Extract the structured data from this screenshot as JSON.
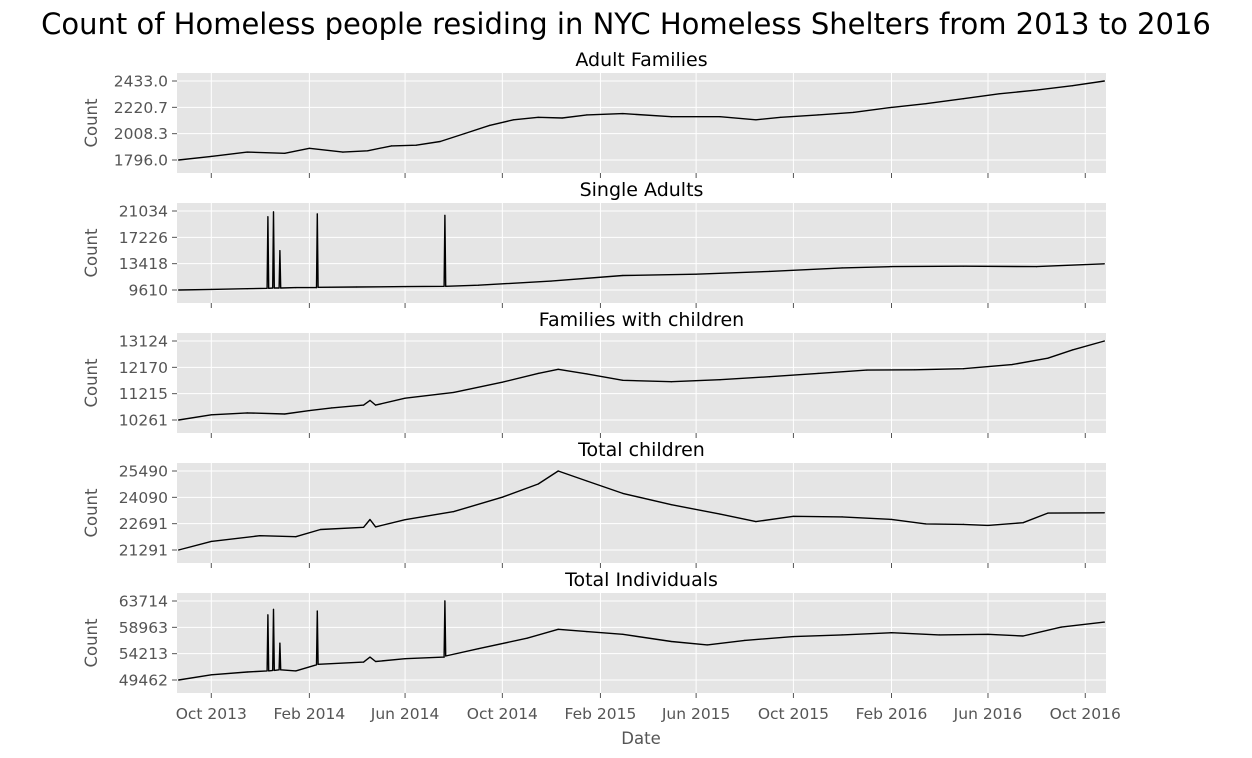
{
  "title": "Count of Homeless people residing in NYC Homeless Shelters from 2013 to 2016",
  "xlabel": "Date",
  "x_tick_labels": [
    "Oct 2013",
    "Feb 2014",
    "Jun 2014",
    "Oct 2014",
    "Feb 2015",
    "Jun 2015",
    "Oct 2015",
    "Feb 2016",
    "Jun 2016",
    "Oct 2016"
  ],
  "colors": {
    "line": "#000000",
    "panel_background": "#e5e5e5",
    "grid": "#ffffff"
  },
  "chart_data": [
    {
      "type": "line",
      "title": "Adult Families",
      "ylabel": "Count",
      "grid": true,
      "ylim": [
        1796.0,
        2433.0
      ],
      "y_tick_labels": [
        "1796.0",
        "2008.3",
        "2220.7",
        "2433.0"
      ],
      "x": [
        "2013-08-21",
        "2013-10-01",
        "2013-11-15",
        "2014-01-01",
        "2014-02-01",
        "2014-03-15",
        "2014-04-15",
        "2014-05-15",
        "2014-06-15",
        "2014-07-15",
        "2014-08-15",
        "2014-09-15",
        "2014-10-15",
        "2014-11-15",
        "2014-12-15",
        "2015-01-15",
        "2015-03-01",
        "2015-05-01",
        "2015-07-01",
        "2015-08-15",
        "2015-09-15",
        "2015-11-01",
        "2015-12-15",
        "2016-02-01",
        "2016-03-15",
        "2016-05-01",
        "2016-06-15",
        "2016-08-01",
        "2016-09-15",
        "2016-10-25"
      ],
      "values": [
        1796,
        1825,
        1860,
        1850,
        1890,
        1860,
        1870,
        1910,
        1915,
        1945,
        2010,
        2075,
        2120,
        2140,
        2135,
        2160,
        2170,
        2145,
        2145,
        2120,
        2140,
        2160,
        2180,
        2220,
        2250,
        2290,
        2330,
        2360,
        2395,
        2433
      ]
    },
    {
      "type": "line",
      "title": "Single Adults",
      "ylabel": "Count",
      "grid": true,
      "ylim": [
        9610,
        21034
      ],
      "y_tick_labels": [
        "9610",
        "13418",
        "17226",
        "21034"
      ],
      "x": [
        "2013-08-21",
        "2013-10-01",
        "2013-11-15",
        "2013-12-10",
        "2013-12-11",
        "2013-12-12",
        "2013-12-17",
        "2013-12-18",
        "2013-12-19",
        "2013-12-25",
        "2013-12-26",
        "2013-12-27",
        "2014-01-15",
        "2014-02-10",
        "2014-02-11",
        "2014-02-12",
        "2014-04-01",
        "2014-06-01",
        "2014-07-20",
        "2014-07-21",
        "2014-07-22",
        "2014-09-01",
        "2014-12-01",
        "2015-03-01",
        "2015-06-01",
        "2015-09-01",
        "2015-12-01",
        "2016-02-01",
        "2016-05-01",
        "2016-08-01",
        "2016-10-25"
      ],
      "values": [
        9610,
        9700,
        9800,
        9850,
        20200,
        9850,
        9900,
        20900,
        9900,
        9900,
        15300,
        9900,
        9950,
        9950,
        20600,
        10000,
        10050,
        10100,
        10150,
        20400,
        10150,
        10300,
        10900,
        11700,
        11900,
        12300,
        12800,
        13000,
        13050,
        13000,
        13400
      ]
    },
    {
      "type": "line",
      "title": "Families with children",
      "ylabel": "Count",
      "grid": true,
      "ylim": [
        10261,
        13124
      ],
      "y_tick_labels": [
        "10261",
        "11215",
        "12170",
        "13124"
      ],
      "x": [
        "2013-08-21",
        "2013-10-01",
        "2013-11-15",
        "2014-01-01",
        "2014-02-01",
        "2014-03-01",
        "2014-04-10",
        "2014-04-18",
        "2014-04-25",
        "2014-06-01",
        "2014-08-01",
        "2014-10-01",
        "2014-11-15",
        "2014-12-10",
        "2015-01-15",
        "2015-03-01",
        "2015-05-01",
        "2015-07-01",
        "2015-09-01",
        "2015-11-01",
        "2016-01-01",
        "2016-03-01",
        "2016-05-01",
        "2016-07-01",
        "2016-08-15",
        "2016-09-15",
        "2016-10-25"
      ],
      "values": [
        10261,
        10450,
        10520,
        10480,
        10600,
        10700,
        10800,
        10970,
        10800,
        11050,
        11260,
        11630,
        11950,
        12100,
        11930,
        11700,
        11650,
        11720,
        11830,
        11950,
        12070,
        12080,
        12120,
        12270,
        12500,
        12800,
        13124
      ]
    },
    {
      "type": "line",
      "title": "Total children",
      "ylabel": "Count",
      "grid": true,
      "ylim": [
        21291,
        25490
      ],
      "y_tick_labels": [
        "21291",
        "22691",
        "24090",
        "25490"
      ],
      "x": [
        "2013-08-21",
        "2013-10-01",
        "2013-12-01",
        "2014-01-15",
        "2014-02-15",
        "2014-04-10",
        "2014-04-18",
        "2014-04-25",
        "2014-06-01",
        "2014-08-01",
        "2014-10-01",
        "2014-11-15",
        "2014-12-10",
        "2015-01-15",
        "2015-03-01",
        "2015-05-01",
        "2015-07-01",
        "2015-08-15",
        "2015-10-01",
        "2015-12-01",
        "2016-02-01",
        "2016-03-15",
        "2016-05-01",
        "2016-06-01",
        "2016-07-15",
        "2016-08-15",
        "2016-10-25"
      ],
      "values": [
        21291,
        21750,
        22050,
        22000,
        22380,
        22500,
        22910,
        22520,
        22900,
        23330,
        24100,
        24800,
        25490,
        24960,
        24300,
        23700,
        23200,
        22800,
        23080,
        23050,
        22920,
        22680,
        22650,
        22600,
        22740,
        23250,
        23270
      ]
    },
    {
      "type": "line",
      "title": "Total Individuals",
      "ylabel": "Count",
      "grid": true,
      "ylim": [
        49462,
        63714
      ],
      "y_tick_labels": [
        "49462",
        "54213",
        "58963",
        "63714"
      ],
      "x": [
        "2013-08-21",
        "2013-10-01",
        "2013-11-15",
        "2013-12-10",
        "2013-12-11",
        "2013-12-12",
        "2013-12-17",
        "2013-12-18",
        "2013-12-19",
        "2013-12-25",
        "2013-12-26",
        "2013-12-27",
        "2014-01-15",
        "2014-02-10",
        "2014-02-11",
        "2014-02-12",
        "2014-04-10",
        "2014-04-18",
        "2014-04-25",
        "2014-06-01",
        "2014-07-20",
        "2014-07-21",
        "2014-07-22",
        "2014-09-01",
        "2014-11-01",
        "2014-12-10",
        "2015-01-15",
        "2015-03-01",
        "2015-05-01",
        "2015-06-15",
        "2015-08-01",
        "2015-10-01",
        "2015-12-01",
        "2016-02-01",
        "2016-04-01",
        "2016-06-01",
        "2016-07-15",
        "2016-09-01",
        "2016-10-25"
      ],
      "values": [
        49462,
        50400,
        50900,
        51100,
        61200,
        51100,
        51200,
        62200,
        51200,
        51300,
        56100,
        51300,
        51100,
        52200,
        61900,
        52300,
        52700,
        53600,
        52800,
        53300,
        53600,
        63714,
        53800,
        55100,
        57000,
        58600,
        58200,
        57700,
        56400,
        55800,
        56600,
        57300,
        57600,
        58000,
        57600,
        57700,
        57400,
        59000,
        59900
      ]
    }
  ]
}
